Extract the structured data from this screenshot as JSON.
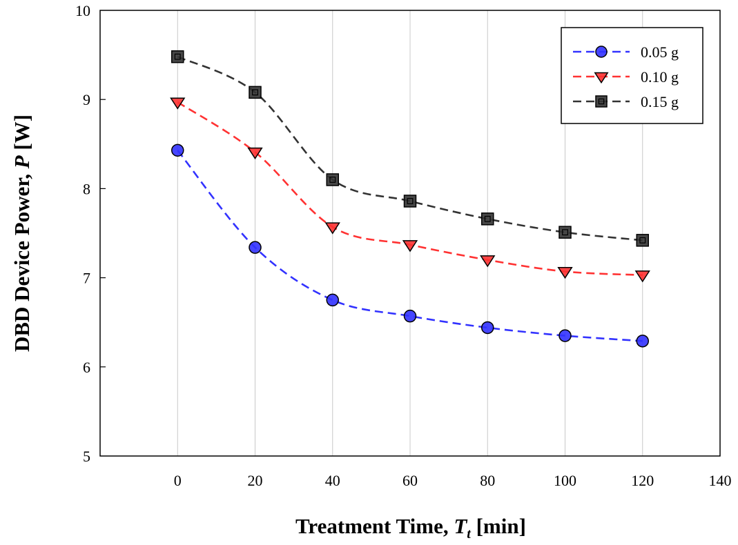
{
  "chart_data": {
    "type": "line",
    "x": [
      0,
      20,
      40,
      60,
      80,
      100,
      120
    ],
    "series": [
      {
        "name": "0.05 g",
        "values": [
          8.43,
          7.34,
          6.75,
          6.57,
          6.44,
          6.35,
          6.29
        ],
        "color": "#3232ff",
        "marker": "circle"
      },
      {
        "name": "0.10 g",
        "values": [
          8.97,
          8.41,
          7.57,
          7.37,
          7.2,
          7.07,
          7.03
        ],
        "color": "#ff3232",
        "marker": "triangle-down"
      },
      {
        "name": "0.15 g",
        "values": [
          9.48,
          9.08,
          8.1,
          7.86,
          7.66,
          7.51,
          7.42
        ],
        "color": "#333333",
        "marker": "square"
      }
    ],
    "xlabel": {
      "main": "Treatment Time, ",
      "var": "T",
      "sub": "t",
      "unit": " [min]"
    },
    "ylabel": {
      "main": "DBD Device Power, ",
      "var": "P",
      "unit": " [W]"
    },
    "xlim": [
      -20,
      140
    ],
    "ylim": [
      5,
      10
    ],
    "xticks": [
      0,
      20,
      40,
      60,
      80,
      100,
      120,
      140
    ],
    "yticks": [
      5,
      6,
      7,
      8,
      9,
      10
    ],
    "grid": "vertical",
    "legend": "top-right"
  }
}
